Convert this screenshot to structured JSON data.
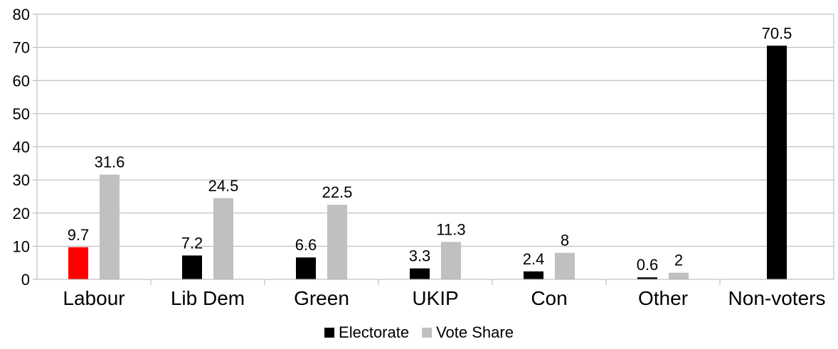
{
  "chart_data": {
    "type": "bar",
    "title": "",
    "xlabel": "",
    "ylabel": "",
    "ylim": [
      0,
      80
    ],
    "yticks": [
      0,
      10,
      20,
      30,
      40,
      50,
      60,
      70,
      80
    ],
    "grid": true,
    "legend_position": "bottom-center",
    "categories": [
      "Labour",
      "Lib Dem",
      "Green",
      "UKIP",
      "Con",
      "Other",
      "Non-voters"
    ],
    "series": [
      {
        "name": "Electorate",
        "color": "#000000",
        "values": [
          9.7,
          7.2,
          6.6,
          3.3,
          2.4,
          0.6,
          70.5
        ],
        "labels": [
          "9.7",
          "7.2",
          "6.6",
          "3.3",
          "2.4",
          "0.6",
          "70.5"
        ],
        "point_colors": [
          "#ff0000",
          null,
          null,
          null,
          null,
          null,
          null
        ]
      },
      {
        "name": "Vote Share",
        "color": "#c0c0c0",
        "values": [
          31.6,
          24.5,
          22.5,
          11.3,
          8,
          2,
          null
        ],
        "labels": [
          "31.6",
          "24.5",
          "22.5",
          "11.3",
          "8",
          "2",
          null
        ]
      }
    ]
  }
}
